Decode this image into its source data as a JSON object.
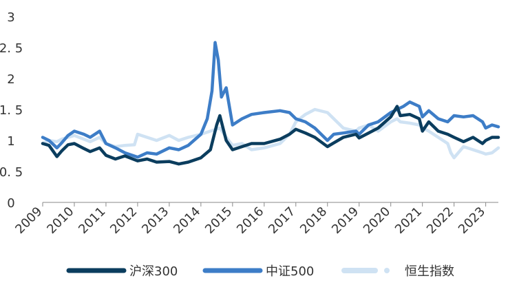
{
  "chart_data": {
    "type": "line",
    "title": "",
    "xlabel": "",
    "ylabel": "",
    "xlim": [
      2009,
      2023.4
    ],
    "ylim": [
      0,
      3
    ],
    "y_ticks": [
      {
        "value": 0,
        "label": "0"
      },
      {
        "value": 0.5,
        "label": "0. 5"
      },
      {
        "value": 1,
        "label": "1"
      },
      {
        "value": 1.5,
        "label": "1. 5"
      },
      {
        "value": 2,
        "label": "2"
      },
      {
        "value": 2.5,
        "label": "2. 5"
      },
      {
        "value": 3,
        "label": "3"
      }
    ],
    "x_ticks": [
      {
        "value": 2009,
        "label": "2009"
      },
      {
        "value": 2010,
        "label": "2010"
      },
      {
        "value": 2011,
        "label": "2011"
      },
      {
        "value": 2012,
        "label": "2012"
      },
      {
        "value": 2013,
        "label": "2013"
      },
      {
        "value": 2014,
        "label": "2014"
      },
      {
        "value": 2015,
        "label": "2015"
      },
      {
        "value": 2016,
        "label": "2016"
      },
      {
        "value": 2017,
        "label": "2017"
      },
      {
        "value": 2018,
        "label": "2018"
      },
      {
        "value": 2019,
        "label": "2019"
      },
      {
        "value": 2020,
        "label": "2020"
      },
      {
        "value": 2021,
        "label": "2021"
      },
      {
        "value": 2022,
        "label": "2022"
      },
      {
        "value": 2023,
        "label": "2023"
      }
    ],
    "grid": false,
    "legend_position": "bottom",
    "series": [
      {
        "name": "沪深300",
        "color": "#0b3d5e",
        "legend_style": "line",
        "x": [
          2009,
          2009.2,
          2009.45,
          2009.6,
          2009.8,
          2010,
          2010.3,
          2010.5,
          2010.8,
          2011,
          2011.3,
          2011.6,
          2012,
          2012.3,
          2012.6,
          2013,
          2013.3,
          2013.6,
          2014,
          2014.3,
          2014.5,
          2014.6,
          2014.8,
          2015,
          2015.3,
          2015.6,
          2016,
          2016.5,
          2016.8,
          2017,
          2017.3,
          2017.6,
          2018,
          2018.2,
          2018.5,
          2018.9,
          2019,
          2019.3,
          2019.6,
          2020,
          2020.2,
          2020.3,
          2020.6,
          2020.9,
          2021,
          2021.2,
          2021.5,
          2021.8,
          2022,
          2022.3,
          2022.6,
          2022.9,
          2023,
          2023.2,
          2023.4
        ],
        "values": [
          0.95,
          0.92,
          0.74,
          0.83,
          0.93,
          0.95,
          0.87,
          0.82,
          0.88,
          0.76,
          0.7,
          0.75,
          0.67,
          0.7,
          0.65,
          0.66,
          0.62,
          0.65,
          0.72,
          0.85,
          1.25,
          1.4,
          1.0,
          0.85,
          0.9,
          0.95,
          0.95,
          1.02,
          1.1,
          1.18,
          1.12,
          1.05,
          0.9,
          0.96,
          1.05,
          1.1,
          1.04,
          1.12,
          1.2,
          1.38,
          1.55,
          1.4,
          1.42,
          1.35,
          1.15,
          1.3,
          1.15,
          1.1,
          1.05,
          0.98,
          1.05,
          0.95,
          1.0,
          1.05,
          1.05
        ]
      },
      {
        "name": "中证500",
        "color": "#3d7dc7",
        "legend_style": "line",
        "x": [
          2009,
          2009.2,
          2009.45,
          2009.6,
          2009.8,
          2010,
          2010.3,
          2010.5,
          2010.8,
          2011,
          2011.3,
          2011.6,
          2012,
          2012.3,
          2012.6,
          2013,
          2013.3,
          2013.6,
          2014,
          2014.2,
          2014.35,
          2014.45,
          2014.55,
          2014.65,
          2014.8,
          2015,
          2015.3,
          2015.6,
          2016,
          2016.5,
          2016.8,
          2017,
          2017.3,
          2017.6,
          2018,
          2018.2,
          2018.5,
          2018.9,
          2019,
          2019.3,
          2019.6,
          2020,
          2020.2,
          2020.4,
          2020.6,
          2020.9,
          2021,
          2021.2,
          2021.5,
          2021.8,
          2022,
          2022.3,
          2022.6,
          2022.9,
          2023,
          2023.2,
          2023.4
        ],
        "values": [
          1.05,
          1.0,
          0.88,
          0.96,
          1.08,
          1.15,
          1.1,
          1.05,
          1.15,
          0.95,
          0.88,
          0.8,
          0.73,
          0.8,
          0.78,
          0.88,
          0.85,
          0.92,
          1.1,
          1.35,
          1.8,
          2.58,
          2.3,
          1.7,
          1.85,
          1.25,
          1.35,
          1.42,
          1.45,
          1.48,
          1.45,
          1.35,
          1.3,
          1.2,
          1.0,
          1.1,
          1.12,
          1.15,
          1.1,
          1.25,
          1.3,
          1.45,
          1.5,
          1.55,
          1.62,
          1.55,
          1.38,
          1.48,
          1.35,
          1.3,
          1.4,
          1.38,
          1.4,
          1.3,
          1.2,
          1.25,
          1.22
        ]
      },
      {
        "name": "恒生指数",
        "color": "#cfe2f3",
        "legend_style": "dashed-dot",
        "x": [
          2009,
          2009.2,
          2009.45,
          2009.6,
          2009.8,
          2010,
          2010.3,
          2010.5,
          2010.8,
          2011,
          2011.3,
          2011.6,
          2011.9,
          2012,
          2012.3,
          2012.6,
          2013,
          2013.3,
          2013.6,
          2014,
          2014.3,
          2014.6,
          2014.8,
          2015,
          2015.3,
          2015.6,
          2016,
          2016.5,
          2016.8,
          2017,
          2017.3,
          2017.6,
          2018,
          2018.2,
          2018.5,
          2018.9,
          2019,
          2019.3,
          2019.6,
          2020,
          2020.2,
          2020.3,
          2020.6,
          2020.9,
          2021,
          2021.2,
          2021.5,
          2021.8,
          2021.9,
          2022,
          2022.3,
          2022.6,
          2022.9,
          2023,
          2023.2,
          2023.4
        ],
        "values": [
          0.95,
          1.0,
          0.98,
          1.02,
          1.05,
          1.08,
          1.02,
          0.98,
          1.05,
          0.95,
          0.9,
          0.92,
          0.93,
          1.1,
          1.05,
          1.0,
          1.08,
          1.0,
          1.05,
          1.1,
          1.15,
          1.2,
          1.05,
          0.92,
          0.95,
          0.85,
          0.88,
          0.95,
          1.1,
          1.3,
          1.42,
          1.5,
          1.45,
          1.35,
          1.2,
          1.15,
          1.2,
          1.25,
          1.15,
          1.3,
          1.35,
          1.3,
          1.28,
          1.25,
          1.2,
          1.15,
          1.05,
          0.95,
          0.8,
          0.72,
          0.9,
          0.85,
          0.8,
          0.78,
          0.8,
          0.88
        ]
      }
    ]
  }
}
